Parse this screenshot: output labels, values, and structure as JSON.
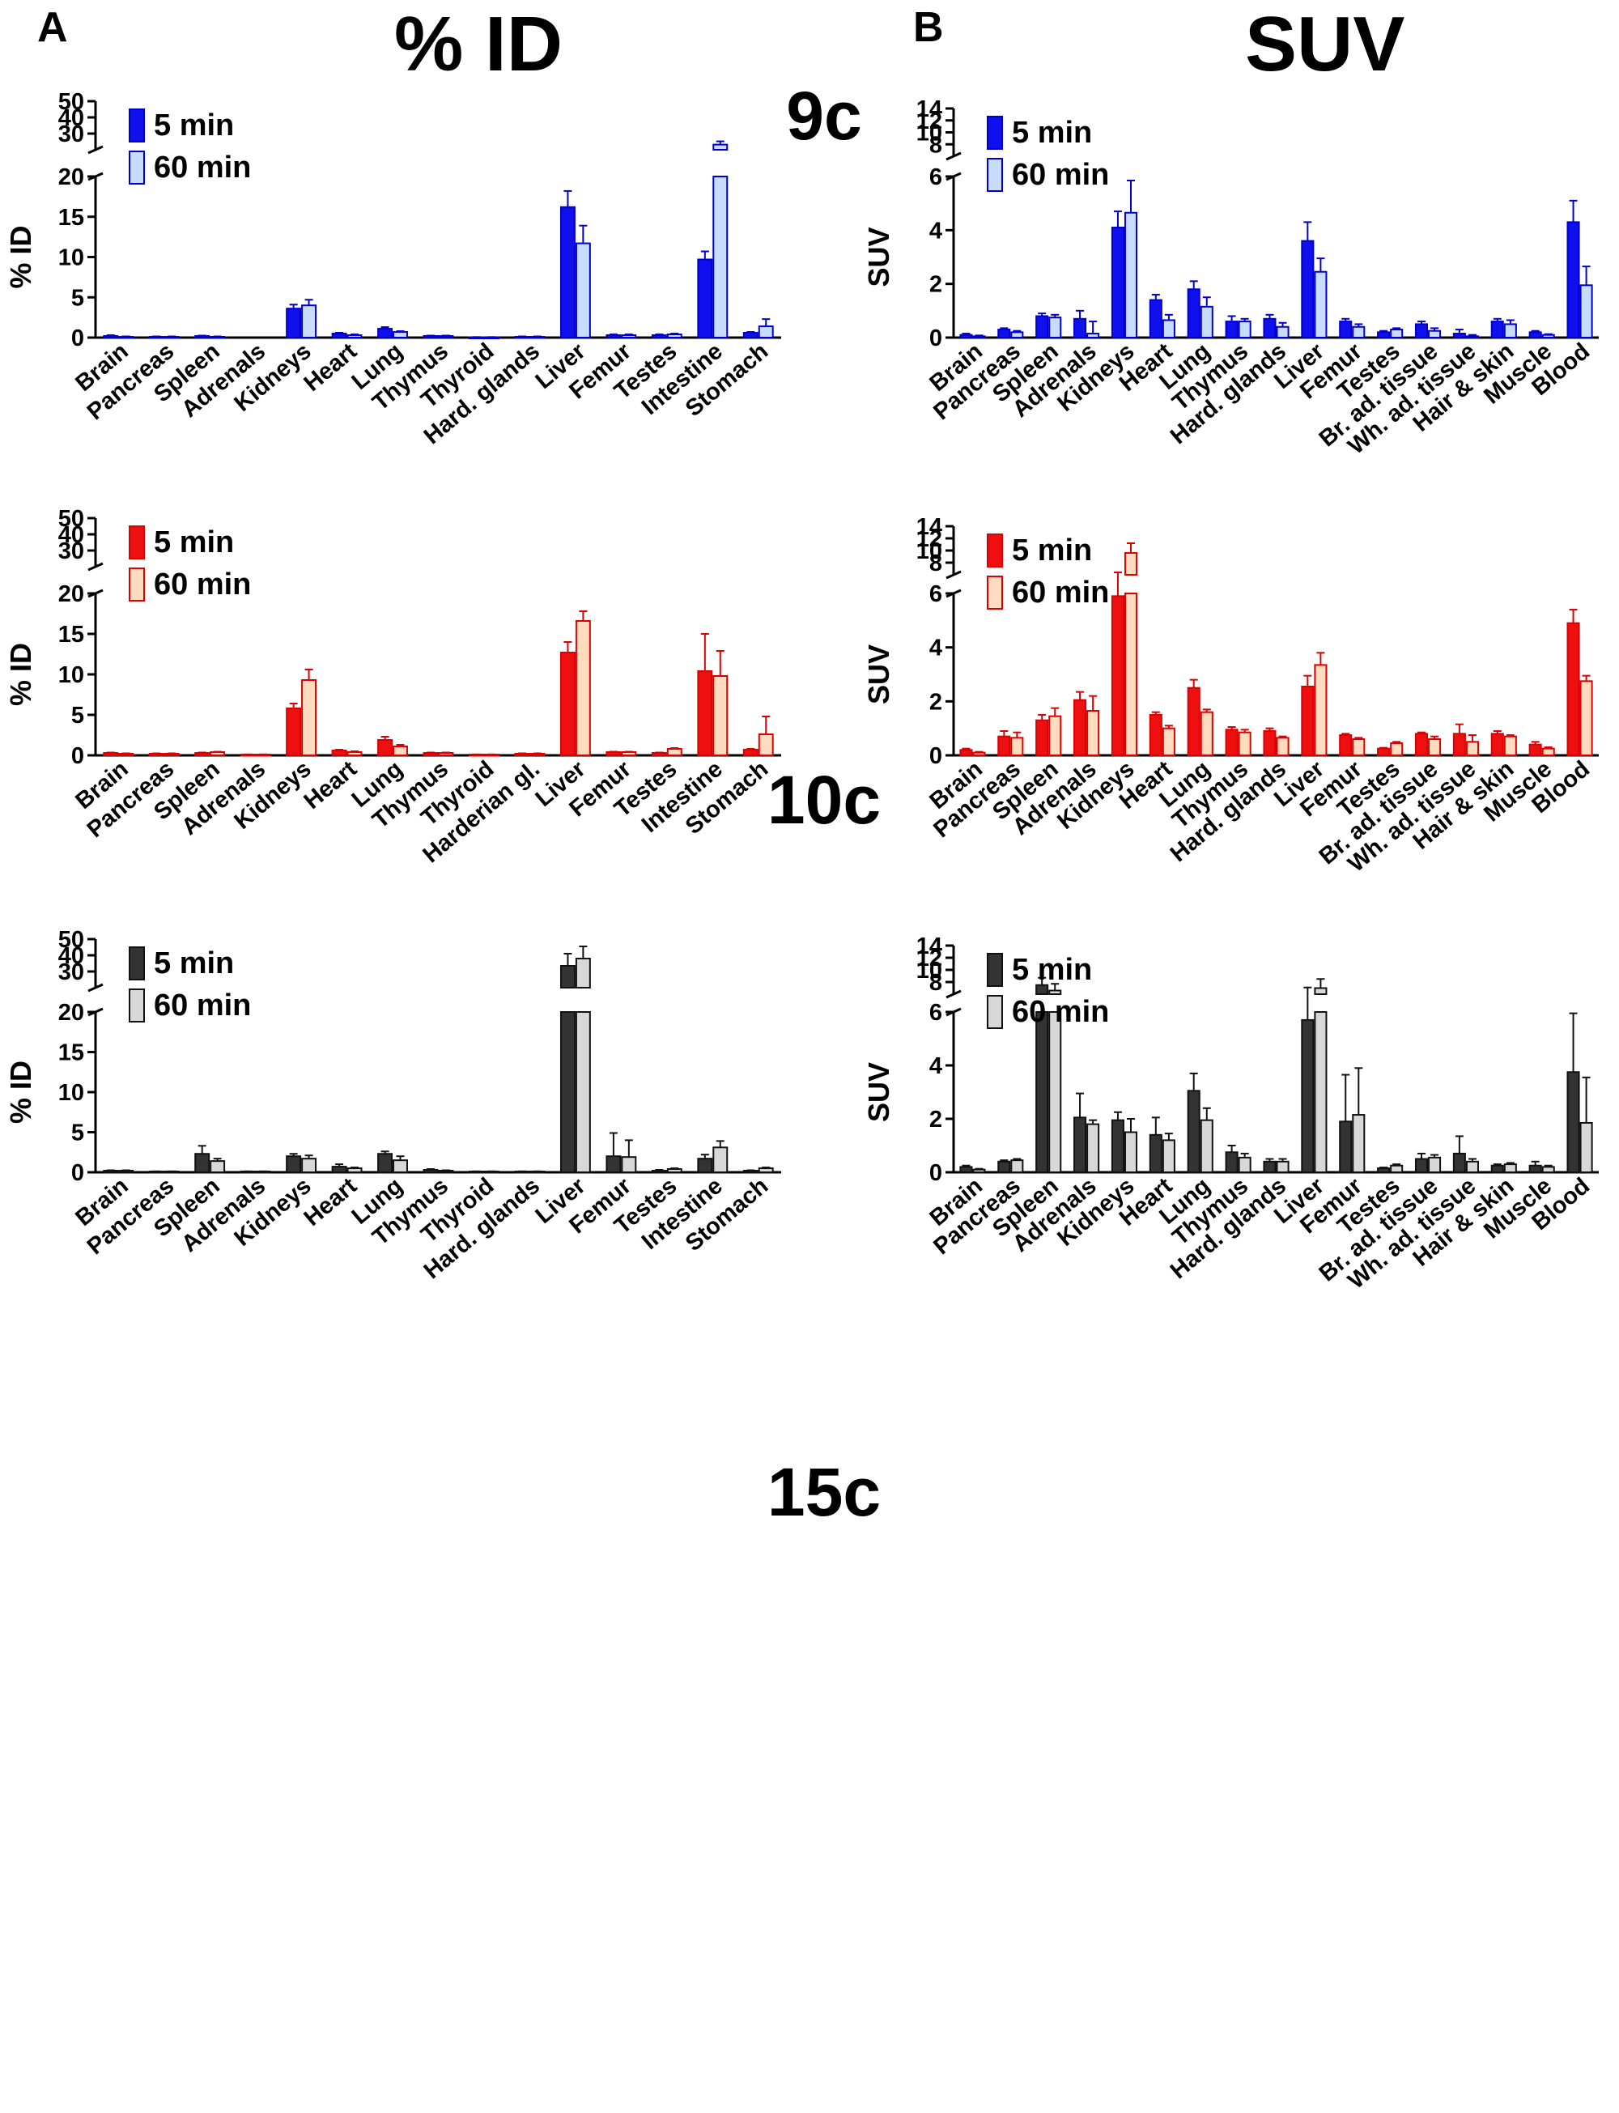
{
  "panel_labels": {
    "a": "A",
    "b": "B"
  },
  "column_titles": {
    "left": "% ID",
    "right": "SUV"
  },
  "compound_labels": [
    "9c",
    "10c",
    "15c"
  ],
  "colors": {
    "9c": {
      "fill5": "#1010ee",
      "fill60": "#c8dcff",
      "edge": "#0000cc"
    },
    "10c": {
      "fill5": "#ee1010",
      "fill60": "#ffdcc0",
      "edge": "#dd0000"
    },
    "15c": {
      "fill5": "#333333",
      "fill60": "#d8d8d8",
      "edge": "#111111"
    }
  },
  "chart_data": [
    {
      "type": "bar",
      "compound": "9c",
      "metric": "ID",
      "ylabel": "% ID",
      "categories": [
        "Brain",
        "Pancreas",
        "Spleen",
        "Adrenals",
        "Kidneys",
        "Heart",
        "Lung",
        "Thymus",
        "Thyroid",
        "Hard. glands",
        "Liver",
        "Femur",
        "Testes",
        "Intestine",
        "Stomach"
      ],
      "ylim_lower": [
        0,
        20
      ],
      "yticks_lower": [
        0,
        5,
        10,
        15,
        20
      ],
      "ylim_upper": [
        20,
        50
      ],
      "yticks_upper": [
        30,
        40,
        50
      ],
      "series": [
        {
          "name": "5 min",
          "values": [
            0.2,
            0.1,
            0.2,
            0.0,
            3.6,
            0.5,
            1.1,
            0.2,
            0.05,
            0.1,
            16.2,
            0.3,
            0.3,
            9.7,
            0.6
          ],
          "errors": [
            0.1,
            0.05,
            0.05,
            0.0,
            0.5,
            0.1,
            0.2,
            0.05,
            0.02,
            0.05,
            2.0,
            0.1,
            0.1,
            1.0,
            0.1
          ]
        },
        {
          "name": "60 min",
          "values": [
            0.1,
            0.1,
            0.1,
            0.0,
            4.0,
            0.3,
            0.7,
            0.2,
            0.05,
            0.1,
            11.7,
            0.3,
            0.4,
            23.2,
            1.4
          ],
          "errors": [
            0.05,
            0.05,
            0.05,
            0.0,
            0.7,
            0.1,
            0.1,
            0.05,
            0.02,
            0.05,
            2.2,
            0.1,
            0.1,
            2.0,
            0.9
          ]
        }
      ],
      "legend": "top-left"
    },
    {
      "type": "bar",
      "compound": "9c",
      "metric": "SUV",
      "ylabel": "SUV",
      "categories": [
        "Brain",
        "Pancreas",
        "Spleen",
        "Adrenals",
        "Kidneys",
        "Heart",
        "Lung",
        "Thymus",
        "Hard. glands",
        "Liver",
        "Femur",
        "Testes",
        "Br. ad. tissue",
        "Wh. ad. tissue",
        "Hair & skin",
        "Muscle",
        "Blood"
      ],
      "ylim_lower": [
        0,
        6
      ],
      "yticks_lower": [
        0,
        2,
        4,
        6
      ],
      "ylim_upper": [
        6,
        14
      ],
      "yticks_upper": [
        8,
        10,
        12,
        14
      ],
      "series": [
        {
          "name": "5 min",
          "values": [
            0.1,
            0.3,
            0.8,
            0.7,
            4.1,
            1.4,
            1.8,
            0.6,
            0.7,
            3.6,
            0.6,
            0.2,
            0.5,
            0.15,
            0.6,
            0.2,
            4.3
          ],
          "errors": [
            0.05,
            0.05,
            0.1,
            0.3,
            0.6,
            0.2,
            0.3,
            0.2,
            0.15,
            0.7,
            0.1,
            0.05,
            0.1,
            0.15,
            0.1,
            0.05,
            0.8
          ]
        },
        {
          "name": "60 min",
          "values": [
            0.05,
            0.2,
            0.75,
            0.15,
            4.65,
            0.65,
            1.15,
            0.6,
            0.4,
            2.45,
            0.4,
            0.3,
            0.25,
            0.05,
            0.5,
            0.1,
            1.95
          ],
          "errors": [
            0.03,
            0.05,
            0.1,
            0.45,
            1.2,
            0.2,
            0.35,
            0.1,
            0.15,
            0.5,
            0.1,
            0.05,
            0.1,
            0.05,
            0.15,
            0.03,
            0.7
          ]
        }
      ],
      "legend": "top-left"
    },
    {
      "type": "bar",
      "compound": "10c",
      "metric": "ID",
      "ylabel": "% ID",
      "categories": [
        "Brain",
        "Pancreas",
        "Spleen",
        "Adrenals",
        "Kidneys",
        "Heart",
        "Lung",
        "Thymus",
        "Thyroid",
        "Harderian gl.",
        "Liver",
        "Femur",
        "Testes",
        "Intestine",
        "Stomach"
      ],
      "ylim_lower": [
        0,
        20
      ],
      "yticks_lower": [
        0,
        5,
        10,
        15,
        20
      ],
      "ylim_upper": [
        20,
        50
      ],
      "yticks_upper": [
        30,
        40,
        50
      ],
      "series": [
        {
          "name": "5 min",
          "values": [
            0.3,
            0.2,
            0.3,
            0.1,
            5.8,
            0.6,
            1.9,
            0.3,
            0.1,
            0.2,
            12.7,
            0.4,
            0.3,
            10.4,
            0.7
          ],
          "errors": [
            0.05,
            0.05,
            0.05,
            0.02,
            0.6,
            0.1,
            0.4,
            0.05,
            0.02,
            0.05,
            1.3,
            0.05,
            0.05,
            4.6,
            0.1
          ]
        },
        {
          "name": "60 min",
          "values": [
            0.2,
            0.2,
            0.4,
            0.1,
            9.3,
            0.4,
            1.1,
            0.3,
            0.1,
            0.2,
            16.6,
            0.4,
            0.8,
            9.8,
            2.6
          ],
          "errors": [
            0.05,
            0.05,
            0.05,
            0.02,
            1.3,
            0.1,
            0.2,
            0.05,
            0.02,
            0.05,
            1.2,
            0.05,
            0.1,
            3.1,
            2.2
          ]
        }
      ],
      "legend": "top-left"
    },
    {
      "type": "bar",
      "compound": "10c",
      "metric": "SUV",
      "ylabel": "SUV",
      "categories": [
        "Brain",
        "Pancreas",
        "Spleen",
        "Adrenals",
        "Kidneys",
        "Heart",
        "Lung",
        "Thymus",
        "Hard. glands",
        "Liver",
        "Femur",
        "Testes",
        "Br. ad. tissue",
        "Wh. ad. tissue",
        "Hair & skin",
        "Muscle",
        "Blood"
      ],
      "ylim_lower": [
        0,
        6
      ],
      "yticks_lower": [
        0,
        2,
        4,
        6
      ],
      "ylim_upper": [
        6,
        14
      ],
      "yticks_upper": [
        8,
        10,
        12,
        14
      ],
      "series": [
        {
          "name": "5 min",
          "values": [
            0.2,
            0.7,
            1.3,
            2.05,
            5.9,
            1.5,
            2.5,
            0.95,
            0.9,
            2.55,
            0.75,
            0.25,
            0.8,
            0.8,
            0.8,
            0.4,
            4.9
          ],
          "errors": [
            0.05,
            0.2,
            0.2,
            0.3,
            0.5,
            0.1,
            0.3,
            0.1,
            0.1,
            0.4,
            0.05,
            0.03,
            0.05,
            0.35,
            0.1,
            0.1,
            0.5
          ]
        },
        {
          "name": "60 min",
          "values": [
            0.1,
            0.65,
            1.45,
            1.65,
            9.6,
            1.0,
            1.6,
            0.85,
            0.65,
            3.35,
            0.6,
            0.45,
            0.6,
            0.5,
            0.7,
            0.25,
            2.75
          ],
          "errors": [
            0.03,
            0.2,
            0.3,
            0.55,
            1.6,
            0.1,
            0.1,
            0.1,
            0.05,
            0.45,
            0.05,
            0.05,
            0.1,
            0.25,
            0.05,
            0.05,
            0.2
          ]
        }
      ],
      "legend": "top-left"
    },
    {
      "type": "bar",
      "compound": "15c",
      "metric": "ID",
      "ylabel": "% ID",
      "categories": [
        "Brain",
        "Pancreas",
        "Spleen",
        "Adrenals",
        "Kidneys",
        "Heart",
        "Lung",
        "Thymus",
        "Thyroid",
        "Hard. glands",
        "Liver",
        "Femur",
        "Testes",
        "Intestine",
        "Stomach"
      ],
      "ylim_lower": [
        0,
        20
      ],
      "yticks_lower": [
        0,
        5,
        10,
        15,
        20
      ],
      "ylim_upper": [
        20,
        50
      ],
      "yticks_upper": [
        30,
        40,
        50
      ],
      "series": [
        {
          "name": "5 min",
          "values": [
            0.2,
            0.1,
            2.3,
            0.1,
            2.0,
            0.7,
            2.3,
            0.3,
            0.1,
            0.1,
            33.5,
            2.0,
            0.2,
            1.7,
            0.2
          ],
          "errors": [
            0.05,
            0.02,
            1.0,
            0.02,
            0.3,
            0.3,
            0.3,
            0.1,
            0.02,
            0.02,
            7.5,
            2.9,
            0.1,
            0.5,
            0.05
          ]
        },
        {
          "name": "60 min",
          "values": [
            0.2,
            0.1,
            1.4,
            0.1,
            1.7,
            0.5,
            1.5,
            0.2,
            0.1,
            0.1,
            38.0,
            1.9,
            0.4,
            3.1,
            0.5
          ],
          "errors": [
            0.05,
            0.02,
            0.3,
            0.02,
            0.4,
            0.1,
            0.5,
            0.05,
            0.02,
            0.02,
            7.5,
            2.1,
            0.1,
            0.8,
            0.1
          ]
        }
      ],
      "legend": "top-left"
    },
    {
      "type": "bar",
      "compound": "15c",
      "metric": "SUV",
      "ylabel": "SUV",
      "categories": [
        "Brain",
        "Pancreas",
        "Spleen",
        "Adrenals",
        "Kidneys",
        "Heart",
        "Lung",
        "Thymus",
        "Hard. glands",
        "Liver",
        "Femur",
        "Testes",
        "Br. ad. tissue",
        "Wh. ad. tissue",
        "Hair & skin",
        "Muscle",
        "Blood"
      ],
      "ylim_lower": [
        0,
        6
      ],
      "yticks_lower": [
        0,
        2,
        4,
        6
      ],
      "ylim_upper": [
        6,
        14
      ],
      "yticks_upper": [
        8,
        10,
        12,
        14
      ],
      "series": [
        {
          "name": "5 min",
          "values": [
            0.2,
            0.4,
            7.5,
            2.05,
            1.95,
            1.4,
            3.05,
            0.75,
            0.4,
            5.7,
            1.9,
            0.15,
            0.5,
            0.7,
            0.25,
            0.25,
            3.75
          ],
          "errors": [
            0.05,
            0.05,
            1.2,
            0.9,
            0.3,
            0.65,
            0.65,
            0.25,
            0.1,
            1.4,
            1.75,
            0.03,
            0.2,
            0.65,
            0.05,
            0.15,
            2.2
          ]
        },
        {
          "name": "60 min",
          "values": [
            0.1,
            0.45,
            6.6,
            1.8,
            1.5,
            1.2,
            1.95,
            0.55,
            0.4,
            7.0,
            2.15,
            0.25,
            0.55,
            0.4,
            0.3,
            0.2,
            1.85
          ],
          "errors": [
            0.03,
            0.05,
            1.1,
            0.15,
            0.5,
            0.25,
            0.45,
            0.15,
            0.1,
            1.5,
            1.75,
            0.05,
            0.1,
            0.1,
            0.05,
            0.05,
            1.7
          ]
        }
      ],
      "legend": "top-left"
    }
  ]
}
